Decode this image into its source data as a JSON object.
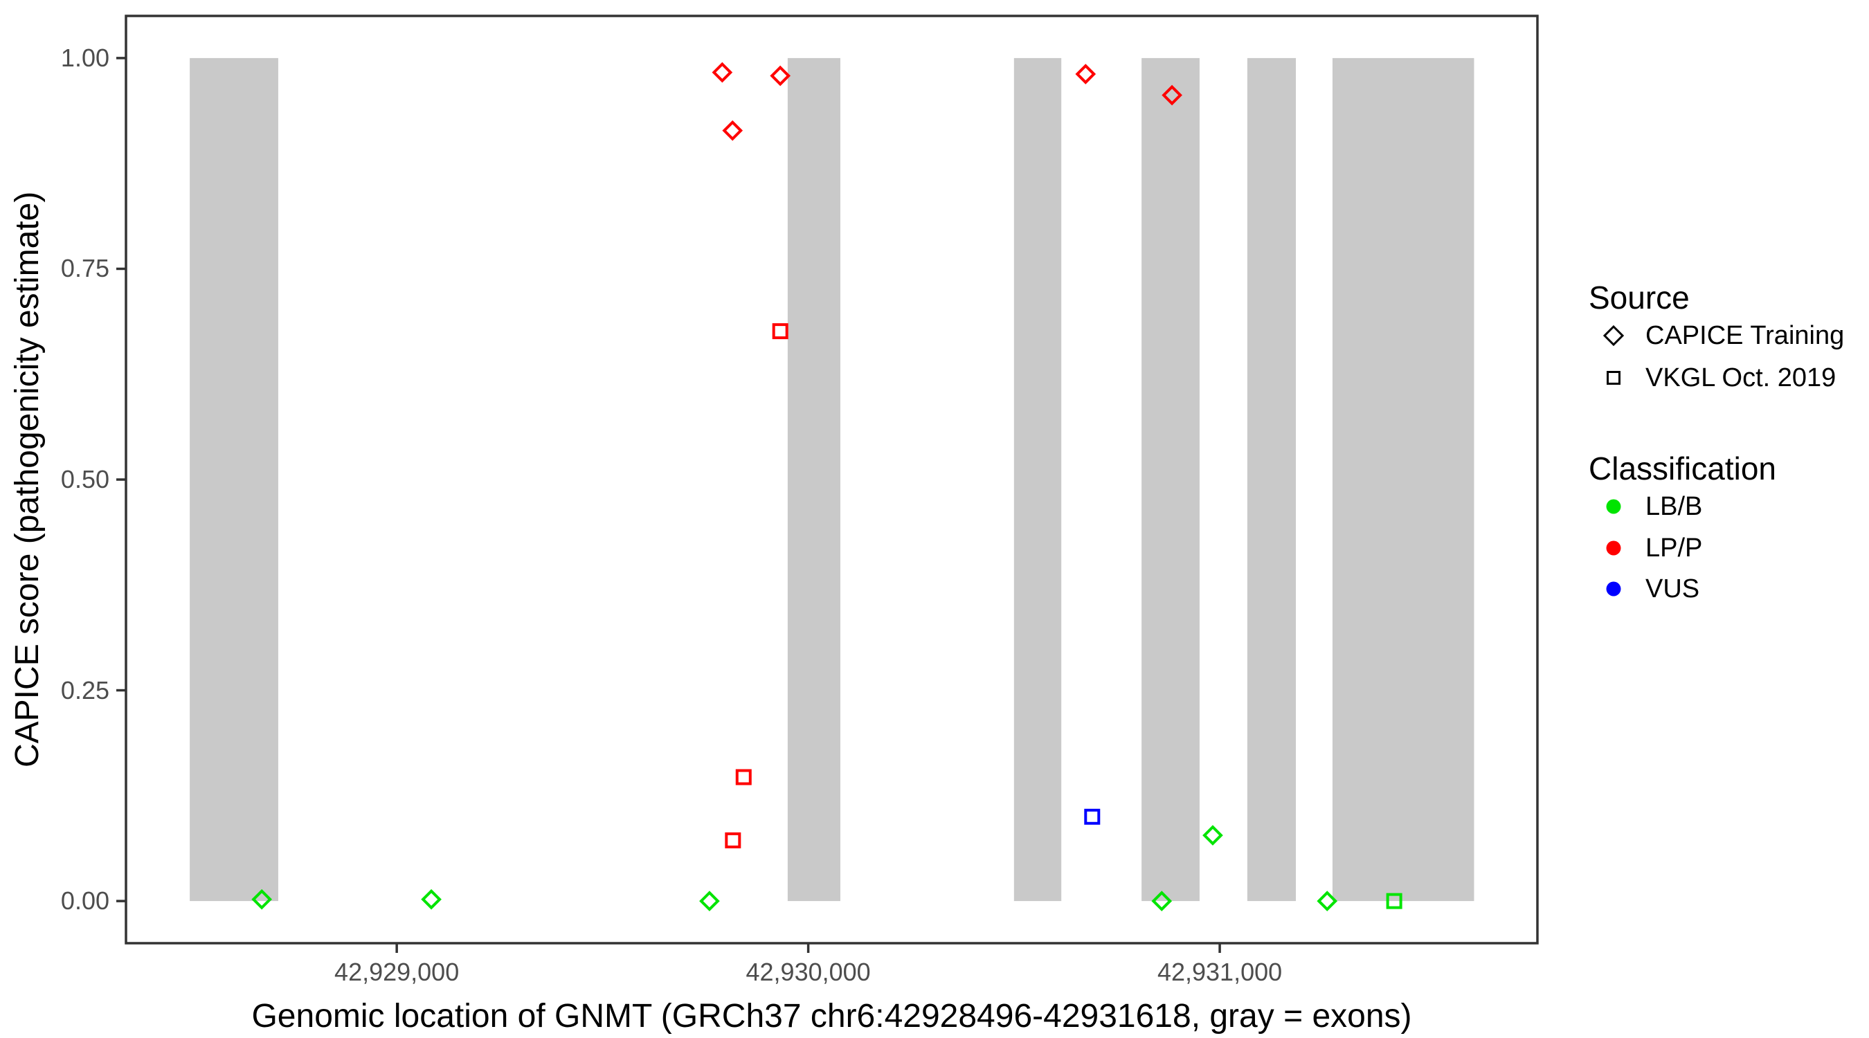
{
  "legend": {
    "source": {
      "title": "Source",
      "items": [
        {
          "label": "CAPICE Training",
          "marker": "diamond"
        },
        {
          "label": "VKGL Oct. 2019",
          "marker": "square"
        }
      ]
    },
    "classification": {
      "title": "Classification",
      "items": [
        {
          "label": "LB/B",
          "color": "#00E400"
        },
        {
          "label": "LP/P",
          "color": "#FF0000"
        },
        {
          "label": "VUS",
          "color": "#0000FF"
        }
      ]
    }
  },
  "chart_data": {
    "type": "scatter",
    "title": "",
    "xlabel": "Genomic location of GNMT (GRCh37 chr6:42928496-42931618, gray = exons)",
    "ylabel": "CAPICE score (pathogenicity estimate)",
    "xlim": [
      42928342,
      42931772
    ],
    "ylim": [
      -0.05,
      1.05
    ],
    "grid": false,
    "legend_position": "right",
    "x_ticks": [
      {
        "value": 42929000,
        "label": "42,929,000"
      },
      {
        "value": 42930000,
        "label": "42,930,000"
      },
      {
        "value": 42931000,
        "label": "42,931,000"
      }
    ],
    "y_ticks": [
      {
        "value": 0.0,
        "label": "0.00"
      },
      {
        "value": 0.25,
        "label": "0.25"
      },
      {
        "value": 0.5,
        "label": "0.50"
      },
      {
        "value": 0.75,
        "label": "0.75"
      },
      {
        "value": 1.0,
        "label": "1.00"
      }
    ],
    "exon_color": "#C9C9C9",
    "exon_regions_bp": [
      [
        42928497,
        42928712
      ],
      [
        42929950,
        42930078
      ],
      [
        42930500,
        42930615
      ],
      [
        42930810,
        42930951
      ],
      [
        42931067,
        42931185
      ],
      [
        42931274,
        42931618
      ]
    ],
    "colors": {
      "LB/B": "#00E400",
      "LP/P": "#FF0000",
      "VUS": "#0000FF"
    },
    "series": [
      {
        "name": "CAPICE Training",
        "marker": "diamond",
        "points": [
          {
            "x": 42928672,
            "y": 0.002,
            "classification": "LB/B"
          },
          {
            "x": 42929084,
            "y": 0.002,
            "classification": "LB/B"
          },
          {
            "x": 42929760,
            "y": 0.0,
            "classification": "LB/B"
          },
          {
            "x": 42929791,
            "y": 0.983,
            "classification": "LP/P"
          },
          {
            "x": 42929816,
            "y": 0.914,
            "classification": "LP/P"
          },
          {
            "x": 42929932,
            "y": 0.979,
            "classification": "LP/P"
          },
          {
            "x": 42930674,
            "y": 0.981,
            "classification": "LP/P"
          },
          {
            "x": 42930859,
            "y": 0.0,
            "classification": "LB/B"
          },
          {
            "x": 42930884,
            "y": 0.956,
            "classification": "LP/P"
          },
          {
            "x": 42930983,
            "y": 0.078,
            "classification": "LB/B"
          },
          {
            "x": 42931261,
            "y": 0.0,
            "classification": "LB/B"
          }
        ]
      },
      {
        "name": "VKGL Oct. 2019",
        "marker": "square",
        "points": [
          {
            "x": 42929817,
            "y": 0.072,
            "classification": "LP/P"
          },
          {
            "x": 42929843,
            "y": 0.147,
            "classification": "LP/P"
          },
          {
            "x": 42929932,
            "y": 0.676,
            "classification": "LP/P"
          },
          {
            "x": 42930690,
            "y": 0.1,
            "classification": "VUS"
          },
          {
            "x": 42931424,
            "y": 0.0,
            "classification": "LB/B"
          }
        ]
      }
    ]
  }
}
